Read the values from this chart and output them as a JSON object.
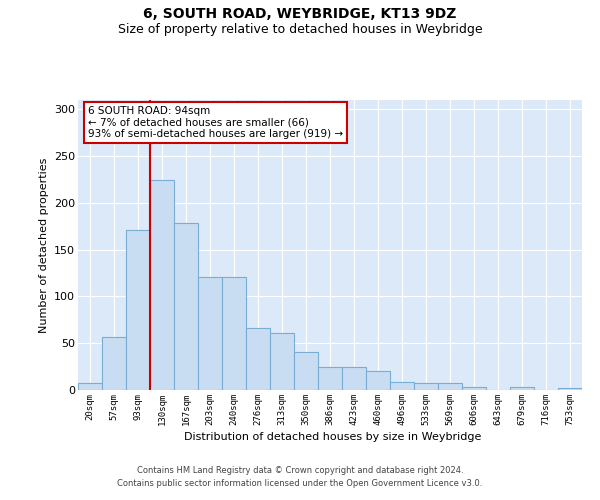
{
  "title": "6, SOUTH ROAD, WEYBRIDGE, KT13 9DZ",
  "subtitle": "Size of property relative to detached houses in Weybridge",
  "xlabel": "Distribution of detached houses by size in Weybridge",
  "ylabel": "Number of detached properties",
  "bar_values": [
    7,
    57,
    171,
    225,
    178,
    121,
    121,
    66,
    61,
    41,
    25,
    25,
    20,
    9,
    8,
    8,
    3,
    0,
    3,
    0,
    2
  ],
  "bar_labels": [
    "20sqm",
    "57sqm",
    "93sqm",
    "130sqm",
    "167sqm",
    "203sqm",
    "240sqm",
    "276sqm",
    "313sqm",
    "350sqm",
    "386sqm",
    "423sqm",
    "460sqm",
    "496sqm",
    "533sqm",
    "569sqm",
    "606sqm",
    "643sqm",
    "679sqm",
    "716sqm",
    "753sqm"
  ],
  "bar_color": "#c9ddf2",
  "bar_edge_color": "#7aadd4",
  "vline_color": "#cc0000",
  "annotation_text": "6 SOUTH ROAD: 94sqm\n← 7% of detached houses are smaller (66)\n93% of semi-detached houses are larger (919) →",
  "annotation_box_color": "#ffffff",
  "annotation_box_edge": "#cc0000",
  "ylim": [
    0,
    310
  ],
  "yticks": [
    0,
    50,
    100,
    150,
    200,
    250,
    300
  ],
  "bg_color": "#dce9f8",
  "footer": "Contains HM Land Registry data © Crown copyright and database right 2024.\nContains public sector information licensed under the Open Government Licence v3.0.",
  "title_fontsize": 10,
  "subtitle_fontsize": 9,
  "xlabel_fontsize": 8,
  "ylabel_fontsize": 8,
  "footer_fontsize": 6,
  "annot_fontsize": 7.5
}
